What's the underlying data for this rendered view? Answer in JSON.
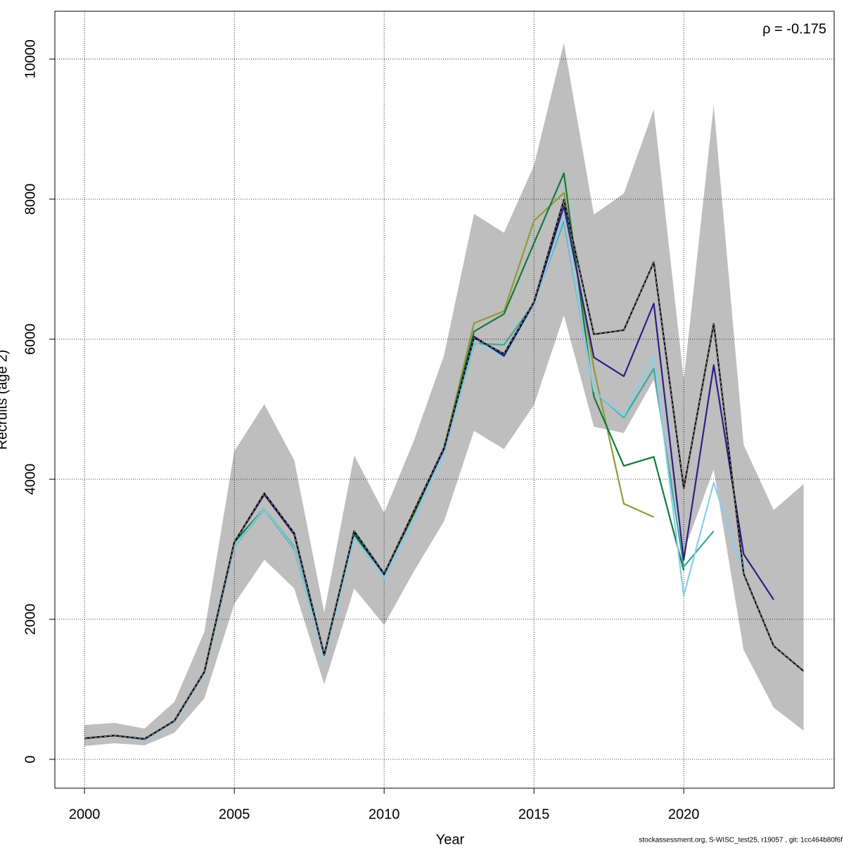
{
  "chart_data": {
    "type": "line",
    "y_label": "Recruits (age 2)",
    "x_label": "Year",
    "annotation": "ρ = -0.175",
    "footer": "stockassessment.org, S-WISC_test25, r19057 , git: 1cc464b80f6f",
    "x": [
      2000,
      2001,
      2002,
      2003,
      2004,
      2005,
      2006,
      2007,
      2008,
      2009,
      2010,
      2011,
      2012,
      2013,
      2014,
      2015,
      2016,
      2017,
      2018,
      2019,
      2020,
      2021,
      2022,
      2023,
      2024
    ],
    "band_color": "#bebebe",
    "ci_lower": [
      190,
      230,
      200,
      380,
      870,
      2220,
      2850,
      2440,
      1070,
      2440,
      1920,
      2690,
      3400,
      4690,
      4430,
      5060,
      6340,
      4750,
      4660,
      5420,
      2960,
      4140,
      1560,
      740,
      410
    ],
    "ci_upper": [
      490,
      520,
      440,
      820,
      1820,
      4400,
      5070,
      4270,
      2100,
      4340,
      3520,
      4560,
      5770,
      7790,
      7520,
      8480,
      10230,
      7780,
      8080,
      9280,
      5420,
      9340,
      4490,
      3560,
      3930
    ],
    "series": [
      {
        "color": "#8f9a3a",
        "values": [
          300,
          340,
          290,
          550,
          1250,
          3100,
          3580,
          3030,
          1480,
          3200,
          2650,
          3500,
          4450,
          6230,
          6400,
          7690,
          8090,
          5580,
          3650,
          3460,
          null,
          null,
          null,
          null,
          null
        ]
      },
      {
        "color": "#117a3a",
        "values": [
          300,
          340,
          290,
          550,
          1250,
          3100,
          3580,
          3030,
          1480,
          3210,
          2650,
          3520,
          4440,
          6110,
          6360,
          7370,
          8370,
          5180,
          4190,
          4320,
          2700,
          null,
          null,
          null,
          null
        ]
      },
      {
        "color": "#3aa89a",
        "values": [
          300,
          340,
          280,
          540,
          1240,
          3040,
          3570,
          3000,
          1460,
          3170,
          2590,
          3420,
          4370,
          5940,
          5920,
          6510,
          7690,
          5260,
          4880,
          5580,
          2750,
          3260,
          null,
          null,
          null
        ]
      },
      {
        "color": "#87ceeb",
        "values": [
          300,
          340,
          280,
          540,
          1240,
          3050,
          3580,
          3020,
          1450,
          3170,
          2590,
          3420,
          4370,
          5960,
          5750,
          6500,
          7740,
          5260,
          4900,
          5760,
          2340,
          3950,
          2650,
          null,
          null
        ]
      },
      {
        "color": "#2b1f86",
        "values": [
          300,
          340,
          290,
          550,
          1250,
          3100,
          3780,
          3210,
          1490,
          3250,
          2640,
          3540,
          4430,
          6040,
          5760,
          6520,
          7900,
          5740,
          5470,
          6510,
          2850,
          5630,
          2930,
          2280,
          null
        ]
      },
      {
        "color": "#000000",
        "dashed": true,
        "values": [
          300,
          340,
          290,
          550,
          1250,
          3100,
          3800,
          3230,
          1490,
          3260,
          2650,
          3550,
          4450,
          6020,
          5790,
          6530,
          7990,
          6070,
          6130,
          7100,
          3870,
          6220,
          2650,
          1620,
          1260
        ]
      }
    ],
    "xlim": [
      1999.01,
      2025.02
    ],
    "ylim": [
      -412,
      10683
    ],
    "xticks": [
      2000,
      2005,
      2010,
      2015,
      2020
    ],
    "yticks": [
      0,
      2000,
      4000,
      6000,
      8000,
      10000
    ],
    "grid": true
  }
}
